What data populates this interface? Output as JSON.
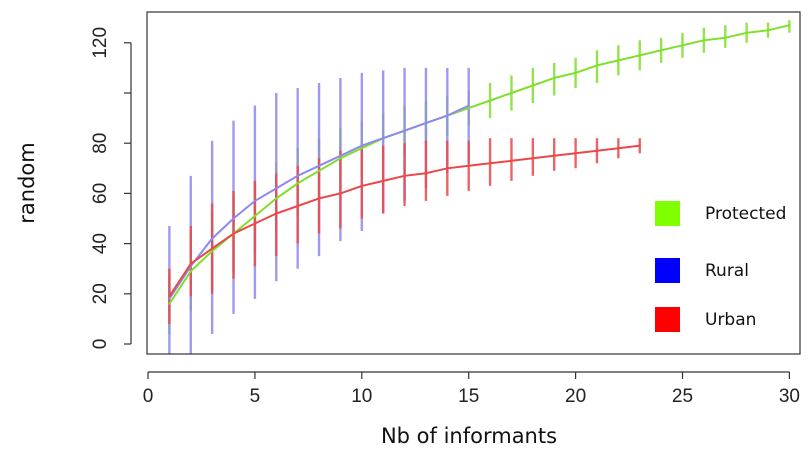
{
  "chart_data": {
    "type": "line",
    "xlabel": "Nb of informants",
    "ylabel": "random",
    "xlim": [
      0,
      30.5
    ],
    "ylim": [
      -2,
      133
    ],
    "x_ticks": [
      0,
      5,
      10,
      15,
      20,
      25,
      30
    ],
    "y_ticks": [
      0,
      20,
      40,
      60,
      80,
      100,
      120
    ],
    "y_tick_labels": [
      "0",
      "20",
      "40",
      "60",
      "80",
      "",
      "120"
    ],
    "grid": false,
    "legend_position": "right",
    "series": [
      {
        "name": "Protected",
        "color": "#7ee02a",
        "x": [
          1,
          2,
          3,
          4,
          5,
          6,
          7,
          8,
          9,
          10,
          11,
          12,
          13,
          14,
          15,
          16,
          17,
          18,
          19,
          20,
          21,
          22,
          23,
          24,
          25,
          26,
          27,
          28,
          29,
          30
        ],
        "y": [
          16,
          29,
          37,
          44,
          51,
          58,
          64,
          69,
          74,
          78,
          82,
          85,
          88,
          91,
          94,
          97,
          100,
          103,
          106,
          108,
          111,
          113,
          115,
          117,
          119,
          121,
          122,
          124,
          125,
          127
        ],
        "err_low": [
          4,
          13,
          22,
          29,
          37,
          44,
          51,
          57,
          62,
          67,
          72,
          76,
          80,
          83,
          87,
          90,
          93,
          96,
          99,
          102,
          104,
          107,
          109,
          112,
          114,
          116,
          118,
          120,
          122,
          124
        ],
        "err_high": [
          28,
          45,
          52,
          59,
          65,
          72,
          78,
          82,
          86,
          89,
          92,
          95,
          97,
          99,
          101,
          104,
          107,
          110,
          112,
          114,
          117,
          119,
          121,
          122,
          124,
          126,
          127,
          128,
          128,
          129
        ]
      },
      {
        "name": "Rural",
        "color": "#8f87f2",
        "x": [
          1,
          2,
          3,
          4,
          5,
          6,
          7,
          8,
          9,
          10,
          11,
          12,
          13,
          14,
          15
        ],
        "y": [
          18,
          31,
          42,
          50,
          57,
          62,
          67,
          71,
          75,
          79,
          82,
          85,
          88,
          91,
          95
        ],
        "err_low": [
          -6,
          -5,
          4,
          12,
          18,
          25,
          30,
          35,
          41,
          45,
          52,
          57,
          62,
          68,
          72
        ],
        "err_high": [
          47,
          67,
          81,
          89,
          95,
          100,
          102,
          104,
          106,
          108,
          109,
          110,
          110,
          110,
          110
        ]
      },
      {
        "name": "Urban",
        "color": "#ea4848",
        "x": [
          1,
          2,
          3,
          4,
          5,
          6,
          7,
          8,
          9,
          10,
          11,
          12,
          13,
          14,
          15,
          16,
          17,
          18,
          19,
          20,
          21,
          22,
          23
        ],
        "y": [
          19,
          32,
          38,
          44,
          48,
          52,
          55,
          58,
          60,
          63,
          65,
          67,
          68,
          70,
          71,
          72,
          73,
          74,
          75,
          76,
          77,
          78,
          79
        ],
        "err_low": [
          8,
          19,
          20,
          26,
          31,
          35,
          40,
          44,
          46,
          50,
          52,
          55,
          57,
          59,
          61,
          63,
          65,
          67,
          69,
          70,
          72,
          74,
          76
        ],
        "err_high": [
          30,
          47,
          56,
          61,
          65,
          68,
          71,
          74,
          77,
          78,
          79,
          80,
          81,
          81,
          81,
          82,
          82,
          82,
          82,
          82,
          82,
          82,
          82
        ]
      }
    ],
    "legend": [
      {
        "label": "Protected",
        "color": "#7fff00"
      },
      {
        "label": "Rural",
        "color": "#0000ff"
      },
      {
        "label": "Urban",
        "color": "#ff0000"
      }
    ]
  }
}
